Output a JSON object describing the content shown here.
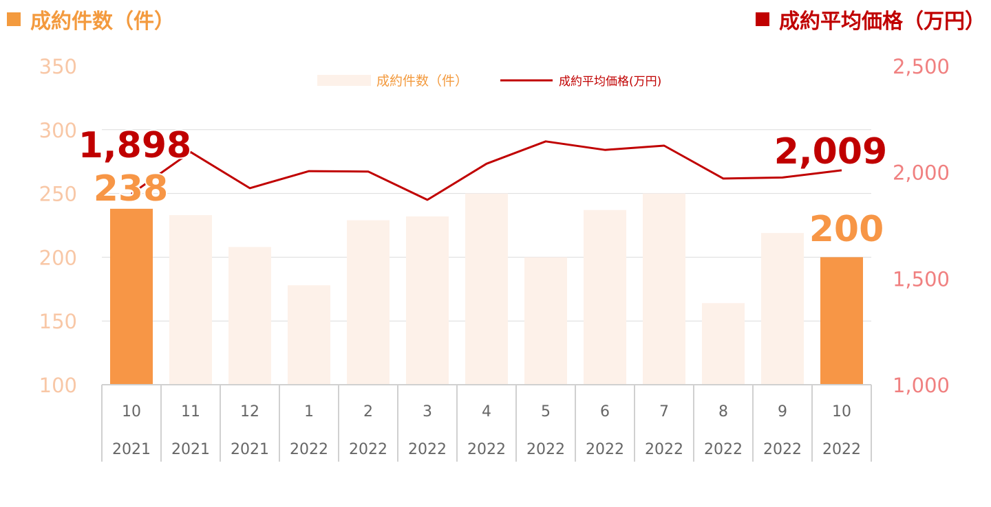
{
  "header": {
    "left_title": "成約件数（件）",
    "right_title": "成約平均価格（万円）",
    "left_color": "#f39a3e",
    "right_color": "#c00000"
  },
  "legend": {
    "bar_label": "成約件数（件）",
    "line_label": "成約平均価格(万円)"
  },
  "chart_data": {
    "type": "bar",
    "categories": [
      {
        "month": "10",
        "year": "2021"
      },
      {
        "month": "11",
        "year": "2021"
      },
      {
        "month": "12",
        "year": "2021"
      },
      {
        "month": "1",
        "year": "2022"
      },
      {
        "month": "2",
        "year": "2022"
      },
      {
        "month": "3",
        "year": "2022"
      },
      {
        "month": "4",
        "year": "2022"
      },
      {
        "month": "5",
        "year": "2022"
      },
      {
        "month": "6",
        "year": "2022"
      },
      {
        "month": "7",
        "year": "2022"
      },
      {
        "month": "8",
        "year": "2022"
      },
      {
        "month": "9",
        "year": "2022"
      },
      {
        "month": "10",
        "year": "2022"
      }
    ],
    "series": [
      {
        "name": "成約件数（件）",
        "kind": "bar",
        "axis": "left",
        "values": [
          238,
          233,
          208,
          178,
          229,
          232,
          250,
          200,
          237,
          250,
          164,
          219,
          200
        ],
        "highlight_indices": [
          0,
          12
        ],
        "color": "#fdf1e9",
        "highlight_color": "#f79646"
      },
      {
        "name": "成約平均価格(万円)",
        "kind": "line",
        "axis": "right",
        "values": [
          1898,
          2095,
          1925,
          2005,
          2003,
          1870,
          2040,
          2145,
          2105,
          2125,
          1970,
          1975,
          2009
        ],
        "color": "#c00000"
      }
    ],
    "left_axis": {
      "min": 100,
      "max": 350,
      "ticks": [
        100,
        150,
        200,
        250,
        300,
        350
      ],
      "color": "#f8c7a6"
    },
    "right_axis": {
      "min": 1000,
      "max": 2500,
      "ticks": [
        "1,000",
        "1,500",
        "2,000",
        "2,500"
      ],
      "tick_values": [
        1000,
        1500,
        2000,
        2500
      ],
      "color": "#f08080"
    },
    "annotations": [
      {
        "text": "1,898",
        "series": 1,
        "index": 0,
        "color": "#c00000"
      },
      {
        "text": "238",
        "series": 0,
        "index": 0,
        "color": "#f79646"
      },
      {
        "text": "2,009",
        "series": 1,
        "index": 12,
        "color": "#c00000"
      },
      {
        "text": "200",
        "series": 0,
        "index": 12,
        "color": "#f79646"
      }
    ],
    "gridlines": true,
    "legend_position": "top-center"
  }
}
